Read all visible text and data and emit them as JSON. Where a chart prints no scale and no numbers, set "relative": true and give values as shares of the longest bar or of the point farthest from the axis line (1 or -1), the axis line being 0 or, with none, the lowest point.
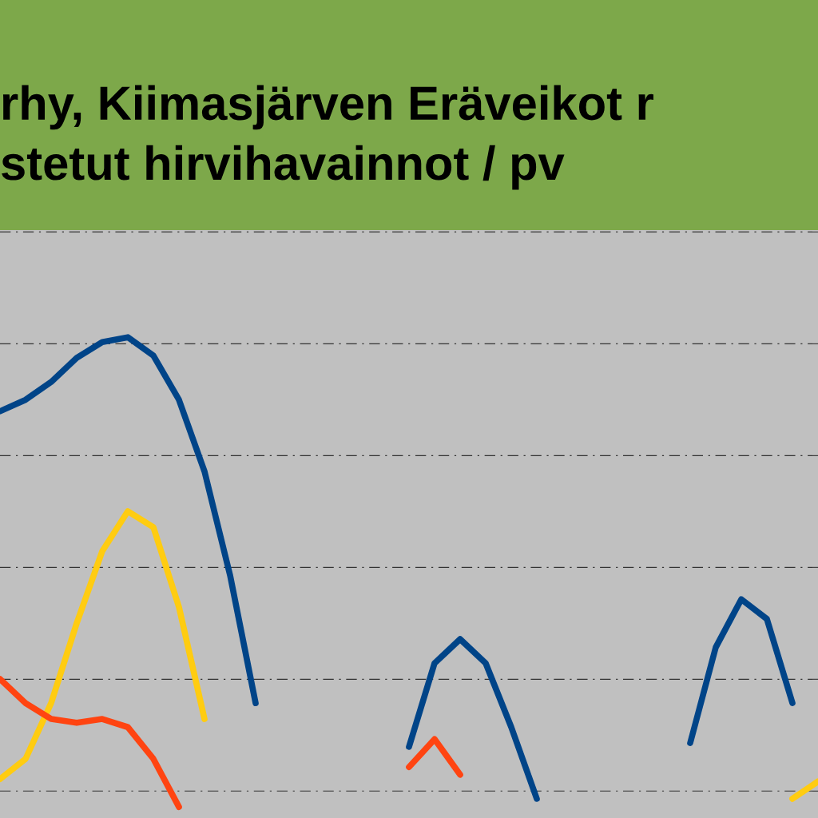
{
  "chart_data": {
    "type": "line",
    "title": "rhy, Kiimasjärven Eräveikot r\nstetut hirvihavainnot / pv",
    "relative": true,
    "grid": "y",
    "marker": "none",
    "line_style": "solid",
    "categories": [
      null,
      null,
      null,
      null,
      null,
      null,
      null,
      null,
      null,
      null,
      null,
      null,
      null,
      null,
      null,
      null,
      null,
      null,
      null,
      null,
      null,
      null,
      null,
      null,
      null,
      null,
      null,
      null,
      null,
      null,
      null,
      null,
      null
    ],
    "series": [
      {
        "color": "#004488",
        "values": [
          0.846,
          0.87,
          0.907,
          0.957,
          0.99,
          1.0,
          0.962,
          0.87,
          0.721,
          0.505,
          0.239,
          null,
          null,
          null,
          null,
          null,
          null,
          null,
          null,
          null,
          null,
          null,
          null,
          null,
          null,
          null,
          null,
          null,
          null,
          null,
          null,
          null,
          null
        ]
      },
      {
        "color": "#004488",
        "values": [
          null,
          null,
          null,
          null,
          null,
          null,
          null,
          null,
          null,
          null,
          null,
          null,
          null,
          null,
          null,
          null,
          0.148,
          0.322,
          0.372,
          0.322,
          0.189,
          0.04,
          null,
          null,
          null,
          null,
          null,
          null,
          null,
          null,
          null,
          null,
          null
        ]
      },
      {
        "color": "#004488",
        "values": [
          null,
          null,
          null,
          null,
          null,
          null,
          null,
          null,
          null,
          null,
          null,
          null,
          null,
          null,
          null,
          null,
          null,
          null,
          null,
          null,
          null,
          null,
          null,
          null,
          null,
          null,
          null,
          0.156,
          0.355,
          0.455,
          0.414,
          0.239,
          null
        ]
      },
      {
        "color": "#ffcc11",
        "values": [
          0.081,
          0.123,
          0.239,
          0.405,
          0.555,
          0.638,
          0.605,
          0.439,
          0.206,
          null,
          null,
          null,
          null,
          null,
          null,
          null,
          null,
          null,
          null,
          null,
          null,
          null,
          null,
          null,
          null,
          null,
          null,
          null,
          null,
          null,
          null,
          null,
          null
        ]
      },
      {
        "color": "#ffcc11",
        "values": [
          null,
          null,
          null,
          null,
          null,
          null,
          null,
          null,
          null,
          null,
          null,
          null,
          null,
          null,
          null,
          null,
          null,
          null,
          null,
          null,
          null,
          null,
          null,
          null,
          null,
          null,
          null,
          null,
          null,
          null,
          null,
          0.04,
          0.076
        ]
      },
      {
        "color": "#ff4411",
        "values": [
          0.289,
          0.239,
          0.206,
          0.198,
          0.206,
          0.189,
          0.123,
          0.023,
          null,
          null,
          null,
          null,
          null,
          null,
          null,
          null,
          null,
          null,
          null,
          null,
          null,
          null,
          null,
          null,
          null,
          null,
          null,
          null,
          null,
          null,
          null,
          null,
          null
        ]
      },
      {
        "color": "#ff4411",
        "values": [
          null,
          null,
          null,
          null,
          null,
          null,
          null,
          null,
          null,
          null,
          null,
          null,
          null,
          null,
          null,
          null,
          0.106,
          0.164,
          0.09,
          null,
          null,
          null,
          null,
          null,
          null,
          null,
          null,
          null,
          null,
          null,
          null,
          null,
          null
        ]
      }
    ]
  }
}
